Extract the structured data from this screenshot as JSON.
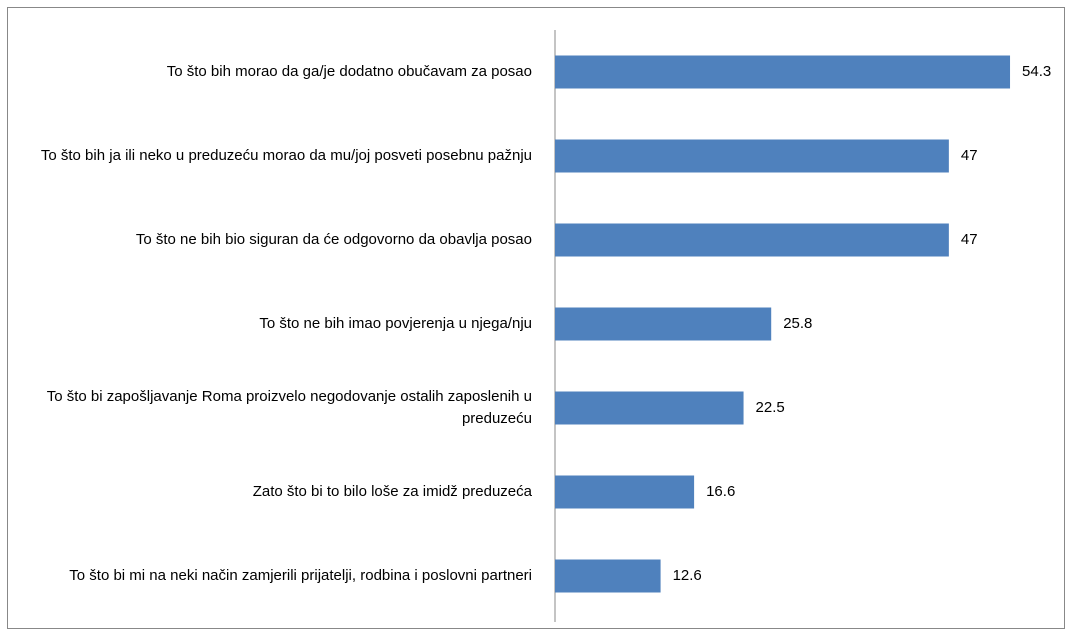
{
  "chart_data": {
    "type": "bar",
    "orientation": "horizontal",
    "categories": [
      "To što bih morao da ga/je dodatno obučavam za posao",
      "To što bih ja ili neko u preduzeću morao da mu/joj posveti posebnu pažnju",
      "To što ne bih bio siguran da će odgovorno da obavlja posao",
      "To što ne bih imao povjerenja u njega/nju",
      "To što bi zapošljavanje Roma proizvelo negodovanje ostalih zaposlenih u preduzeću",
      "Zato što bi to bilo loše za imidž preduzeća",
      "To što bi mi na neki način zamjerili prijatelji, rodbina i poslovni partneri"
    ],
    "values": [
      54.3,
      47,
      47,
      25.8,
      22.5,
      16.6,
      12.6
    ],
    "color": "#4f81bd",
    "xlim": [
      0,
      60
    ]
  }
}
